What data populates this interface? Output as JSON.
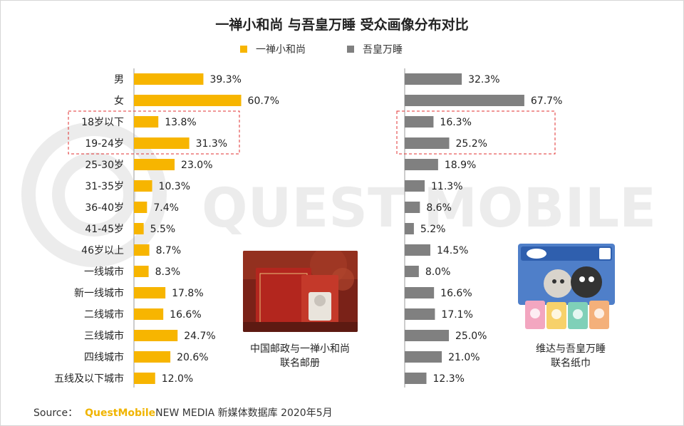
{
  "title": "一禅小和尚 与吾皇万睡 受众画像分布对比",
  "legend": [
    {
      "label": "一禅小和尚",
      "color": "#f7b500"
    },
    {
      "label": "吾皇万睡",
      "color": "#808080"
    }
  ],
  "watermark": "QUEST MOBILE",
  "left_image": {
    "caption_line1": "中国邮政与一禅小和尚",
    "caption_line2": "联名邮册",
    "icon": "stamp-album-photo"
  },
  "right_image": {
    "caption_line1": "维达与吾皇万睡",
    "caption_line2": "联名纸巾",
    "icon": "tissue-pack-photo"
  },
  "source": {
    "prefix": "Source：",
    "brand": "QuestMobile",
    "text": "NEW MEDIA 新媒体数据库 2020年5月"
  },
  "chart_data": {
    "type": "bar",
    "orientation": "horizontal",
    "title": "一禅小和尚 与吾皇万睡 受众画像分布对比",
    "categories": [
      "男",
      "女",
      "18岁以下",
      "19-24岁",
      "25-30岁",
      "31-35岁",
      "36-40岁",
      "41-45岁",
      "46岁以上",
      "一线城市",
      "新一线城市",
      "二线城市",
      "三线城市",
      "四线城市",
      "五线及以下城市"
    ],
    "series": [
      {
        "name": "一禅小和尚",
        "color": "#f7b500",
        "values": [
          39.3,
          60.7,
          13.8,
          31.3,
          23.0,
          10.3,
          7.4,
          5.5,
          8.7,
          8.3,
          17.8,
          16.6,
          24.7,
          20.6,
          12.0
        ],
        "labels": [
          "39.3%",
          "60.7%",
          "13.8%",
          "31.3%",
          "23.0%",
          "10.3%",
          "7.4%",
          "5.5%",
          "8.7%",
          "8.3%",
          "17.8%",
          "16.6%",
          "24.7%",
          "20.6%",
          "12.0%"
        ]
      },
      {
        "name": "吾皇万睡",
        "color": "#808080",
        "values": [
          32.3,
          67.7,
          16.3,
          25.2,
          18.9,
          11.3,
          8.6,
          5.2,
          14.5,
          8.0,
          16.6,
          17.1,
          25.0,
          21.0,
          12.3
        ],
        "labels": [
          "32.3%",
          "67.7%",
          "16.3%",
          "25.2%",
          "18.9%",
          "11.3%",
          "8.6%",
          "5.2%",
          "14.5%",
          "8.0%",
          "16.6%",
          "17.1%",
          "25.0%",
          "21.0%",
          "12.3%"
        ]
      }
    ],
    "highlighted_categories": [
      "18岁以下",
      "19-24岁"
    ],
    "xlim": [
      0,
      100
    ],
    "unit": "%"
  }
}
